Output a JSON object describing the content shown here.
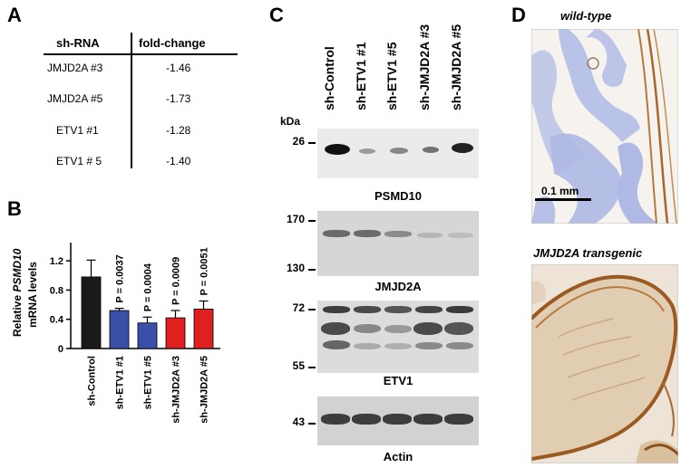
{
  "panels": {
    "a": "A",
    "b": "B",
    "c": "C",
    "d": "D"
  },
  "table": {
    "header_sh": "sh-RNA",
    "header_fold": "fold-change",
    "rows": [
      {
        "name": "JMJD2A #3",
        "value": "-1.46"
      },
      {
        "name": "JMJD2A #5",
        "value": "-1.73"
      },
      {
        "name": "ETV1 #1",
        "value": "-1.28"
      },
      {
        "name": "ETV1 # 5",
        "value": "-1.40"
      }
    ]
  },
  "chart_data": {
    "type": "bar",
    "categories": [
      "sh-Control",
      "sh-ETV1 #1",
      "sh-ETV1 #5",
      "sh-JMJD2A #3",
      "sh-JMJD2A #5"
    ],
    "values": [
      0.98,
      0.52,
      0.35,
      0.42,
      0.54
    ],
    "errors": [
      0.23,
      0.03,
      0.08,
      0.1,
      0.11
    ],
    "colors": [
      "#1a1a1a",
      "#3a4fa8",
      "#3a4fa8",
      "#e02020",
      "#e02020"
    ],
    "pvalues": [
      "",
      "P = 0.0037",
      "P = 0.0004",
      "P = 0.0009",
      "P = 0.0051"
    ],
    "ylabel_pre": "Relative ",
    "ylabel_gene": "PSMD10",
    "ylabel_line2": "mRNA  levels",
    "yticks": [
      "0",
      "0.4",
      "0.8",
      "1.2"
    ],
    "ylim": [
      0,
      1.4
    ]
  },
  "blots": {
    "lanes": [
      "sh-Control",
      "sh-ETV1 #1",
      "sh-ETV1 #5",
      "sh-JMJD2A #3",
      "sh-JMJD2A #5"
    ],
    "kda": "kDa",
    "psmd10": {
      "label": "PSMD10",
      "marker": "26"
    },
    "jmjd2a": {
      "label": "JMJD2A",
      "marker_top": "170",
      "marker_bottom": "130"
    },
    "etv1": {
      "label": "ETV1",
      "marker_top": "72",
      "marker_bottom": "55"
    },
    "actin": {
      "label": "Actin",
      "marker": "43"
    }
  },
  "histology": {
    "top_title": "wild-type",
    "bottom_title": "JMJD2A  transgenic",
    "scale": "0.1 mm"
  }
}
